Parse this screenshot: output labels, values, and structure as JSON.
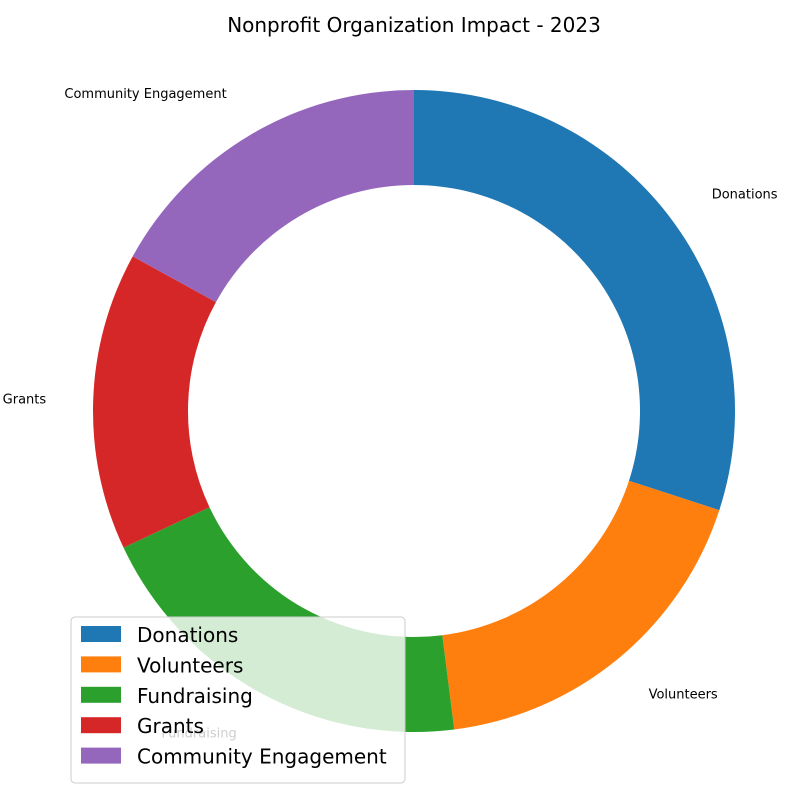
{
  "chart_data": {
    "type": "pie",
    "variant": "donut",
    "title": "Nonprofit Organization Impact - 2023",
    "categories": [
      "Donations",
      "Volunteers",
      "Fundraising",
      "Grants",
      "Community Engagement"
    ],
    "values": [
      30,
      18,
      20,
      15,
      17
    ],
    "colors": [
      "#1f77b4",
      "#ff7f0e",
      "#2ca02c",
      "#d62728",
      "#9467bd"
    ],
    "start_angle_deg": 90,
    "direction": "clockwise",
    "legend": {
      "placement": "lower-left",
      "entries": [
        "Donations",
        "Volunteers",
        "Fundraising",
        "Grants",
        "Community Engagement"
      ]
    }
  }
}
